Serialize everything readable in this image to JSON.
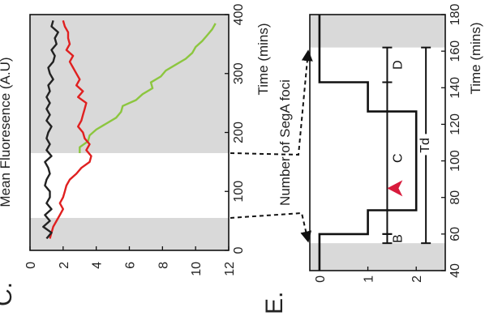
{
  "panels": {
    "c_letter": "C.",
    "e_letter": "E."
  },
  "chart_data": [
    {
      "panel": "C",
      "type": "line",
      "xlabel": "Time (mins)",
      "ylabel": "Mean Fluoresence (A.U)",
      "xlim": [
        0,
        400
      ],
      "ylim": [
        0,
        12
      ],
      "xticks": [
        0,
        100,
        200,
        300,
        400
      ],
      "yticks": [
        0,
        2,
        4,
        6,
        8,
        10,
        12
      ],
      "grid": false,
      "shaded_regions": [
        [
          0,
          55
        ],
        [
          165,
          400
        ]
      ],
      "colors": {
        "green": "#8cc63f",
        "red": "#e02020",
        "black": "#222222",
        "shade": "#d9d9d9"
      },
      "series": [
        {
          "color": "green",
          "x": [
            165,
            175,
            185,
            195,
            205,
            215,
            225,
            235,
            245,
            255,
            265,
            275,
            285,
            295,
            305,
            315,
            325,
            335,
            345,
            355,
            365,
            375,
            385
          ],
          "y": [
            3.0,
            3.0,
            3.5,
            3.6,
            4.0,
            4.6,
            5.2,
            5.5,
            5.6,
            6.4,
            6.8,
            7.4,
            7.3,
            7.9,
            8.2,
            8.8,
            9.4,
            9.8,
            10.0,
            10.4,
            10.7,
            11.0,
            11.2
          ]
        },
        {
          "color": "red",
          "x": [
            20,
            30,
            40,
            50,
            60,
            70,
            80,
            90,
            100,
            110,
            120,
            130,
            140,
            150,
            160,
            170,
            180,
            190,
            200,
            210,
            220,
            230,
            240,
            250,
            260,
            270,
            280,
            290,
            300,
            310,
            320,
            330,
            340,
            350,
            360,
            370,
            380,
            390
          ],
          "y": [
            1.2,
            1.3,
            1.4,
            1.6,
            1.8,
            2.0,
            1.8,
            2.0,
            2.1,
            2.2,
            2.4,
            2.8,
            3.1,
            3.6,
            3.7,
            3.4,
            3.6,
            3.3,
            3.2,
            2.9,
            3.1,
            3.2,
            3.3,
            3.4,
            2.9,
            3.2,
            2.8,
            3.0,
            2.8,
            2.6,
            2.4,
            2.6,
            2.2,
            2.4,
            2.3,
            2.3,
            2.1,
            2.0
          ]
        },
        {
          "color": "black",
          "x": [
            20,
            30,
            40,
            50,
            60,
            70,
            80,
            90,
            100,
            110,
            120,
            130,
            140,
            150,
            160,
            170,
            180,
            190,
            200,
            210,
            220,
            230,
            240,
            250,
            260,
            270,
            280,
            290,
            300,
            310,
            320,
            330,
            340,
            350,
            360,
            370,
            380,
            390
          ],
          "y": [
            1.0,
            1.3,
            0.8,
            1.2,
            0.9,
            1.3,
            1.0,
            1.2,
            1.2,
            0.9,
            1.0,
            1.2,
            1.1,
            0.9,
            1.3,
            1.0,
            1.2,
            1.0,
            1.1,
            1.3,
            1.0,
            1.2,
            1.0,
            1.2,
            1.0,
            1.2,
            1.1,
            1.4,
            1.2,
            1.1,
            1.4,
            1.5,
            1.3,
            1.6,
            1.5,
            1.7,
            1.3,
            1.4
          ]
        }
      ]
    },
    {
      "panel": "E",
      "type": "line",
      "xlabel": "Time (mins)",
      "ylabel": "Number of SegA foci",
      "xlim": [
        40,
        180
      ],
      "ylim": [
        -0.2,
        2.6
      ],
      "xticks": [
        40,
        60,
        80,
        100,
        120,
        140,
        160,
        180
      ],
      "yticks": [
        0,
        1,
        2
      ],
      "grid": false,
      "shaded_regions": [
        [
          40,
          55
        ],
        [
          162,
          180
        ]
      ],
      "step_x": [
        40,
        60,
        60,
        73,
        73,
        127,
        127,
        143,
        143,
        180
      ],
      "step_y": [
        0,
        0,
        1,
        1,
        2,
        2,
        1,
        1,
        0,
        0
      ],
      "spans": [
        {
          "label": "Td",
          "from": 55,
          "to": 162,
          "level": 2.2
        },
        {
          "label": "B",
          "from": 55,
          "to": 60,
          "level": 1.4
        },
        {
          "label": "C",
          "from": 60,
          "to": 143,
          "level": 1.4
        },
        {
          "label": "D",
          "from": 143,
          "to": 162,
          "level": 1.4
        }
      ],
      "arrow_marker_time": 85
    }
  ]
}
